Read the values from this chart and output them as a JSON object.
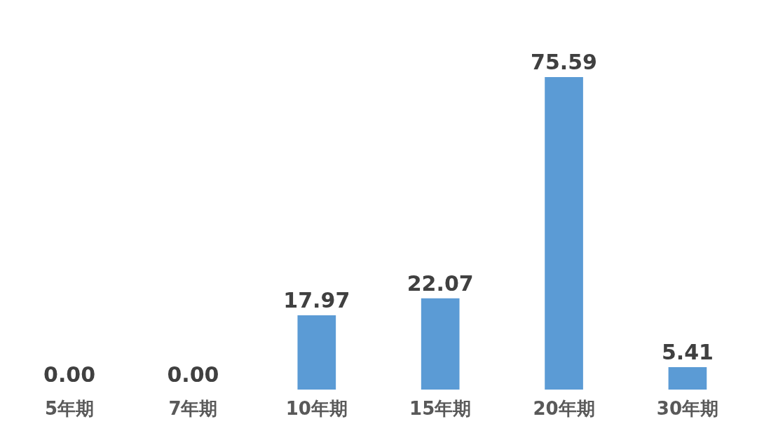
{
  "chart_data": {
    "type": "bar",
    "categories": [
      "5年期",
      "7年期",
      "10年期",
      "15年期",
      "20年期",
      "30年期"
    ],
    "values": [
      0.0,
      0.0,
      17.97,
      22.07,
      75.59,
      5.41
    ],
    "value_labels": [
      "0.00",
      "0.00",
      "17.97",
      "22.07",
      "75.59",
      "5.41"
    ],
    "color": "#5b9bd5",
    "grid": false
  }
}
